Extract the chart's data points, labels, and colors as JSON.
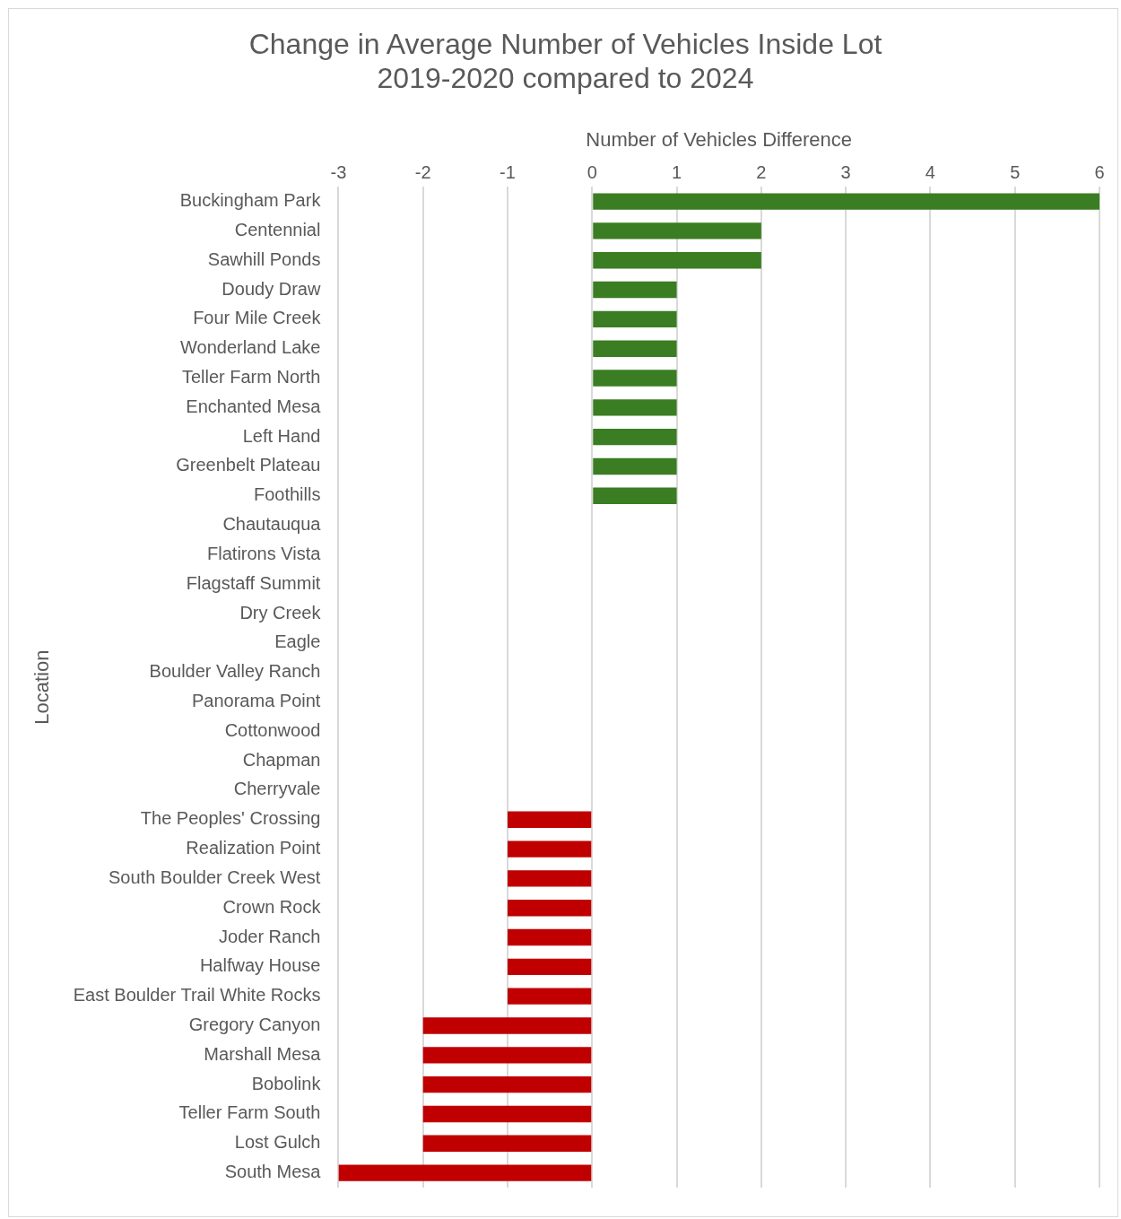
{
  "chart_data": {
    "type": "bar",
    "orientation": "horizontal",
    "title": "Change in Average Number of Vehicles Inside Lot\n2019-2020 compared to 2024",
    "xlabel": "Number of Vehicles Difference",
    "ylabel": "Location",
    "categories": [
      "Buckingham Park",
      "Centennial",
      "Sawhill Ponds",
      "Doudy Draw",
      "Four Mile Creek",
      "Wonderland Lake",
      "Teller Farm North",
      "Enchanted Mesa",
      "Left Hand",
      "Greenbelt Plateau",
      "Foothills",
      "Chautauqua",
      "Flatirons Vista",
      "Flagstaff Summit",
      "Dry Creek",
      "Eagle",
      "Boulder Valley Ranch",
      "Panorama Point",
      "Cottonwood",
      "Chapman",
      "Cherryvale",
      "The Peoples' Crossing",
      "Realization Point",
      "South Boulder Creek West",
      "Crown Rock",
      "Joder Ranch",
      "Halfway House",
      "East Boulder Trail White Rocks",
      "Gregory Canyon",
      "Marshall Mesa",
      "Bobolink",
      "Teller Farm South",
      "Lost Gulch",
      "South Mesa"
    ],
    "values": [
      6,
      2,
      2,
      1,
      1,
      1,
      1,
      1,
      1,
      1,
      1,
      0,
      0,
      0,
      0,
      0,
      0,
      0,
      0,
      0,
      0,
      -1,
      -1,
      -1,
      -1,
      -1,
      -1,
      -1,
      -2,
      -2,
      -2,
      -2,
      -2,
      -3
    ],
    "colors": [
      "#3a7d22",
      "#3a7d22",
      "#3a7d22",
      "#3a7d22",
      "#3a7d22",
      "#3a7d22",
      "#3a7d22",
      "#3a7d22",
      "#3a7d22",
      "#3a7d22",
      "#3a7d22",
      "#3a7d22",
      "#3a7d22",
      "#3a7d22",
      "#3a7d22",
      "#3a7d22",
      "#3a7d22",
      "#3a7d22",
      "#3a7d22",
      "#3a7d22",
      "#3a7d22",
      "#c00000",
      "#c00000",
      "#c00000",
      "#c00000",
      "#c00000",
      "#c00000",
      "#c00000",
      "#c00000",
      "#c00000",
      "#c00000",
      "#c00000",
      "#c00000",
      "#c00000"
    ],
    "xlim": [
      -3,
      6
    ],
    "xticks": [
      -3,
      -2,
      -1,
      0,
      1,
      2,
      3,
      4,
      5,
      6
    ],
    "grid": "x",
    "legend": false
  }
}
